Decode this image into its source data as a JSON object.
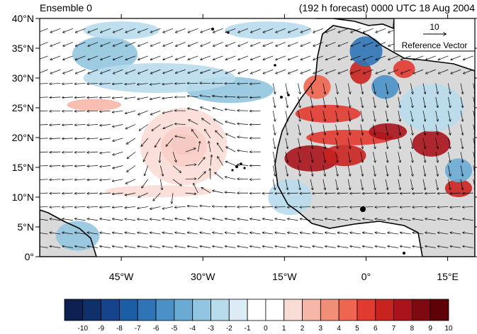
{
  "title_left": "Ensemble 0",
  "title_right": "(192 h forecast) 0000 UTC 18 Aug 2004",
  "reference_vector": {
    "magnitude": "10",
    "label": "Reference Vector"
  },
  "map": {
    "extent": {
      "lon": [
        -60,
        20
      ],
      "lat": [
        0,
        40
      ]
    },
    "lat_ticks": [
      {
        "value": 0,
        "label": "0°"
      },
      {
        "value": 5,
        "label": "5°N"
      },
      {
        "value": 10,
        "label": "10°N"
      },
      {
        "value": 15,
        "label": "15°N"
      },
      {
        "value": 20,
        "label": "20°N"
      },
      {
        "value": 25,
        "label": "25°N"
      },
      {
        "value": 30,
        "label": "30°N"
      },
      {
        "value": 35,
        "label": "35°N"
      },
      {
        "value": 40,
        "label": "40°N"
      }
    ],
    "lon_ticks": [
      {
        "value": -45,
        "label": "45°W"
      },
      {
        "value": -30,
        "label": "30°W"
      },
      {
        "value": -15,
        "label": "15°W"
      },
      {
        "value": 0,
        "label": "0°"
      },
      {
        "value": 15,
        "label": "15°E"
      }
    ],
    "land_color": "#d9d9d9",
    "coast_color": "#000000"
  },
  "colorbar": {
    "labels": [
      "-10",
      "-9",
      "-8",
      "-7",
      "-6",
      "-5",
      "-4",
      "-3",
      "-2",
      "-1",
      "0",
      "1",
      "2",
      "3",
      "4",
      "5",
      "6",
      "7",
      "8",
      "9",
      "10"
    ],
    "colors": [
      "#0c2052",
      "#0e316b",
      "#16448c",
      "#1c5ea6",
      "#2f74b6",
      "#4a91c7",
      "#6aabd3",
      "#92c5df",
      "#b9dcec",
      "#dcecf6",
      "#ffffff",
      "#ffffff",
      "#fadcd6",
      "#f6b7a8",
      "#f28e77",
      "#ef6550",
      "#e23a30",
      "#c9231f",
      "#aa131b",
      "#7f0910",
      "#5f0208"
    ]
  },
  "field_blobs": [
    {
      "lon": -33.5,
      "lat": 18.5,
      "rx": 4.2,
      "ry": 3.4,
      "color": "#ef6550"
    },
    {
      "lon": -33.5,
      "lat": 18.8,
      "rx": 2.3,
      "ry": 1.8,
      "color": "#c9231f"
    },
    {
      "lon": -33.5,
      "lat": 18.5,
      "rx": 8,
      "ry": 6.5,
      "color": "#fadcd6"
    },
    {
      "lon": -10,
      "lat": 16.5,
      "rx": 5,
      "ry": 2.2,
      "color": "#aa131b"
    },
    {
      "lon": -4,
      "lat": 17,
      "rx": 4,
      "ry": 1.8,
      "color": "#c9231f"
    },
    {
      "lon": -3,
      "lat": 20,
      "rx": 8,
      "ry": 1.3,
      "color": "#e23a30"
    },
    {
      "lon": 4,
      "lat": 21,
      "rx": 3.5,
      "ry": 1.4,
      "color": "#aa131b"
    },
    {
      "lon": -7,
      "lat": 24,
      "rx": 6,
      "ry": 1.5,
      "color": "#e23a30"
    },
    {
      "lon": -9,
      "lat": 28.5,
      "rx": 2.5,
      "ry": 2,
      "color": "#ef6550"
    },
    {
      "lon": 12,
      "lat": 19,
      "rx": 3.5,
      "ry": 2.2,
      "color": "#aa131b"
    },
    {
      "lon": 17,
      "lat": 11.5,
      "rx": 2.5,
      "ry": 1.5,
      "color": "#c9231f"
    },
    {
      "lon": -1,
      "lat": 31,
      "rx": 2,
      "ry": 2,
      "color": "#c9231f"
    },
    {
      "lon": 7,
      "lat": 31.5,
      "rx": 2,
      "ry": 1.5,
      "color": "#e23a30"
    },
    {
      "lon": -48,
      "lat": 34,
      "rx": 6,
      "ry": 3,
      "color": "#92c5df"
    },
    {
      "lon": -25,
      "lat": 28,
      "rx": 8,
      "ry": 2.2,
      "color": "#92c5df"
    },
    {
      "lon": -38,
      "lat": 30,
      "rx": 14,
      "ry": 2.5,
      "color": "#b9dcec"
    },
    {
      "lon": 0,
      "lat": 34.5,
      "rx": 3,
      "ry": 2.5,
      "color": "#2f74b6"
    },
    {
      "lon": 3.5,
      "lat": 28.5,
      "rx": 2.5,
      "ry": 2,
      "color": "#4a91c7"
    },
    {
      "lon": -53,
      "lat": 3.5,
      "rx": 4,
      "ry": 2.5,
      "color": "#92c5df"
    },
    {
      "lon": -14,
      "lat": 10,
      "rx": 4,
      "ry": 3,
      "color": "#b9dcec"
    },
    {
      "lon": 17,
      "lat": 14.5,
      "rx": 2.5,
      "ry": 2,
      "color": "#6aabd3"
    },
    {
      "lon": -45,
      "lat": 38,
      "rx": 7,
      "ry": 1.5,
      "color": "#b9dcec"
    },
    {
      "lon": -18,
      "lat": 38,
      "rx": 8,
      "ry": 1.5,
      "color": "#b9dcec"
    },
    {
      "lon": -50,
      "lat": 25.5,
      "rx": 5,
      "ry": 1,
      "color": "#f6b7a8"
    },
    {
      "lon": -38,
      "lat": 11,
      "rx": 10,
      "ry": 1,
      "color": "#fadcd6"
    },
    {
      "lon": 12,
      "lat": 25,
      "rx": 6,
      "ry": 4,
      "color": "#b9dcec"
    }
  ]
}
